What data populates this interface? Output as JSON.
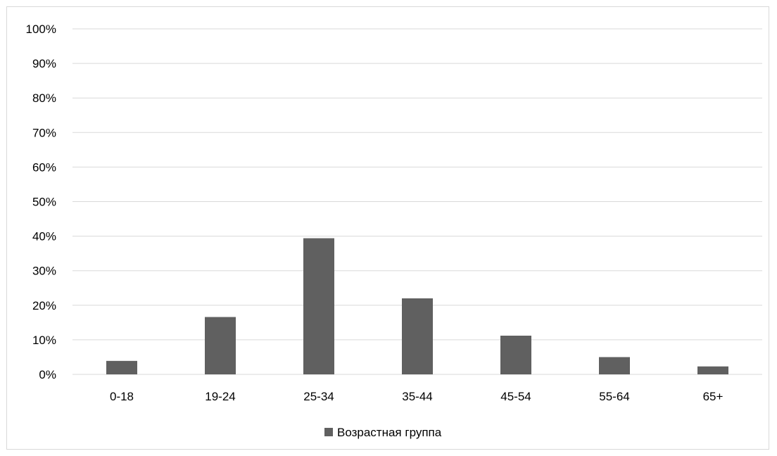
{
  "chart_data": {
    "type": "bar",
    "categories": [
      "0-18",
      "19-24",
      "25-34",
      "35-44",
      "45-54",
      "55-64",
      "65+"
    ],
    "series": [
      {
        "name": "Возрастная группа",
        "values": [
          3.9,
          16.6,
          39.4,
          22.0,
          11.2,
          5.0,
          2.3
        ],
        "color": "#606060"
      }
    ],
    "ylim": [
      0,
      100
    ],
    "yticks": [
      "0%",
      "10%",
      "20%",
      "30%",
      "40%",
      "50%",
      "60%",
      "70%",
      "80%",
      "90%",
      "100%"
    ],
    "grid": true,
    "legend_position": "bottom",
    "gridline_color": "#d9d9d9"
  }
}
